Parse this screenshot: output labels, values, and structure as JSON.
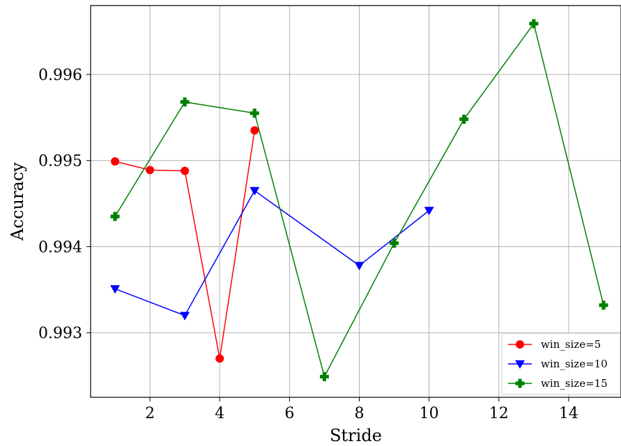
{
  "chart_data": {
    "type": "line",
    "xlabel": "Stride",
    "ylabel": "Accuracy",
    "xlim": [
      0.3,
      15.5
    ],
    "ylim": [
      0.99225,
      0.9968
    ],
    "xticks": [
      2,
      4,
      6,
      8,
      10,
      12,
      14
    ],
    "yticks": [
      0.993,
      0.994,
      0.995,
      0.996
    ],
    "ytick_labels": [
      "0.993",
      "0.994",
      "0.995",
      "0.996"
    ],
    "grid": true,
    "legend_position": "lower-right",
    "series": [
      {
        "name": "win_size=5",
        "color": "#ff0000",
        "marker": "circle",
        "x": [
          1,
          2,
          3,
          4,
          5
        ],
        "y": [
          0.99499,
          0.99489,
          0.99488,
          0.9927,
          0.99535
        ]
      },
      {
        "name": "win_size=10",
        "color": "#0000ff",
        "marker": "triangle-down",
        "x": [
          1,
          3,
          5,
          8,
          10
        ],
        "y": [
          0.99351,
          0.9932,
          0.99465,
          0.99378,
          0.99442
        ]
      },
      {
        "name": "win_size=15",
        "color": "#008000",
        "marker": "plus",
        "x": [
          1,
          3,
          5,
          7,
          9,
          11,
          13,
          15
        ],
        "y": [
          0.99435,
          0.99568,
          0.99555,
          0.99249,
          0.99404,
          0.99548,
          0.99659,
          0.99332
        ]
      }
    ]
  }
}
